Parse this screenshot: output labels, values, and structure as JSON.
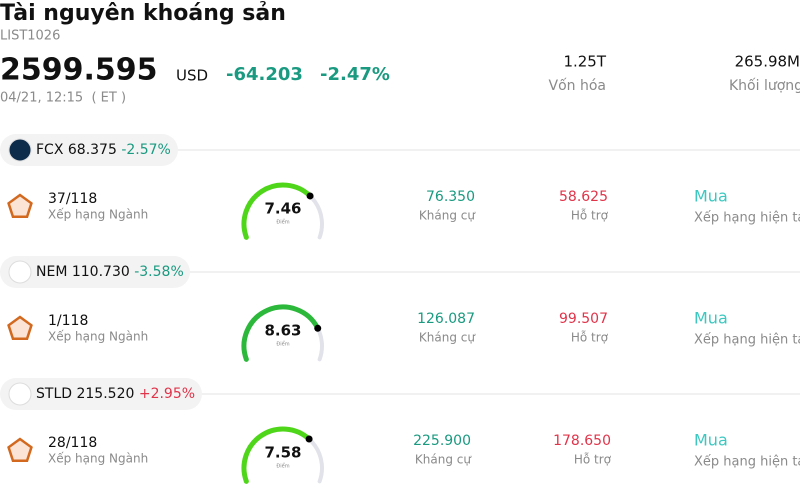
{
  "header": {
    "title": "Tài nguyên khoáng sản",
    "code": "LIST1026",
    "price": "2599.595",
    "currency": "USD",
    "change": "-64.203",
    "change_pct": "-2.47%",
    "time": "04/21, 12:15  ( ET )",
    "stats": [
      {
        "value": "1.25T",
        "label": "Vốn hóa"
      },
      {
        "value": "265.98M",
        "label": "Khối lượng"
      }
    ]
  },
  "stocks": [
    {
      "ticker": "FCX",
      "price": "68.375",
      "change": "-2.57%",
      "change_color": "#1a9a80",
      "rank": "37/118",
      "rank_label": "Xếp hạng Ngành",
      "score": "7.46",
      "score_label": "Điểm",
      "resistance": "76.350",
      "resistance_label": "Kháng cự",
      "support": "58.625",
      "support_label": "Hỗ trợ",
      "rating": "Mua",
      "rating_label": "Xếp hạng hiện tại"
    },
    {
      "ticker": "NEM",
      "price": "110.730",
      "change": "-3.58%",
      "change_color": "#1a9a80",
      "rank": "1/118",
      "rank_label": "Xếp hạng Ngành",
      "score": "8.63",
      "score_label": "Điểm",
      "resistance": "126.087",
      "resistance_label": "Kháng cự",
      "support": "99.507",
      "support_label": "Hỗ trợ",
      "rating": "Mua",
      "rating_label": "Xếp hạng hiện tại"
    },
    {
      "ticker": "STLD",
      "price": "215.520",
      "change": "+2.95%",
      "change_color": "#e0344a",
      "rank": "28/118",
      "rank_label": "Xếp hạng Ngành",
      "score": "7.58",
      "score_label": "Điểm",
      "resistance": "225.900",
      "resistance_label": "Kháng cự",
      "support": "178.650",
      "support_label": "Hỗ trợ",
      "rating": "Mua",
      "rating_label": "Xếp hạng hiện tại"
    }
  ]
}
